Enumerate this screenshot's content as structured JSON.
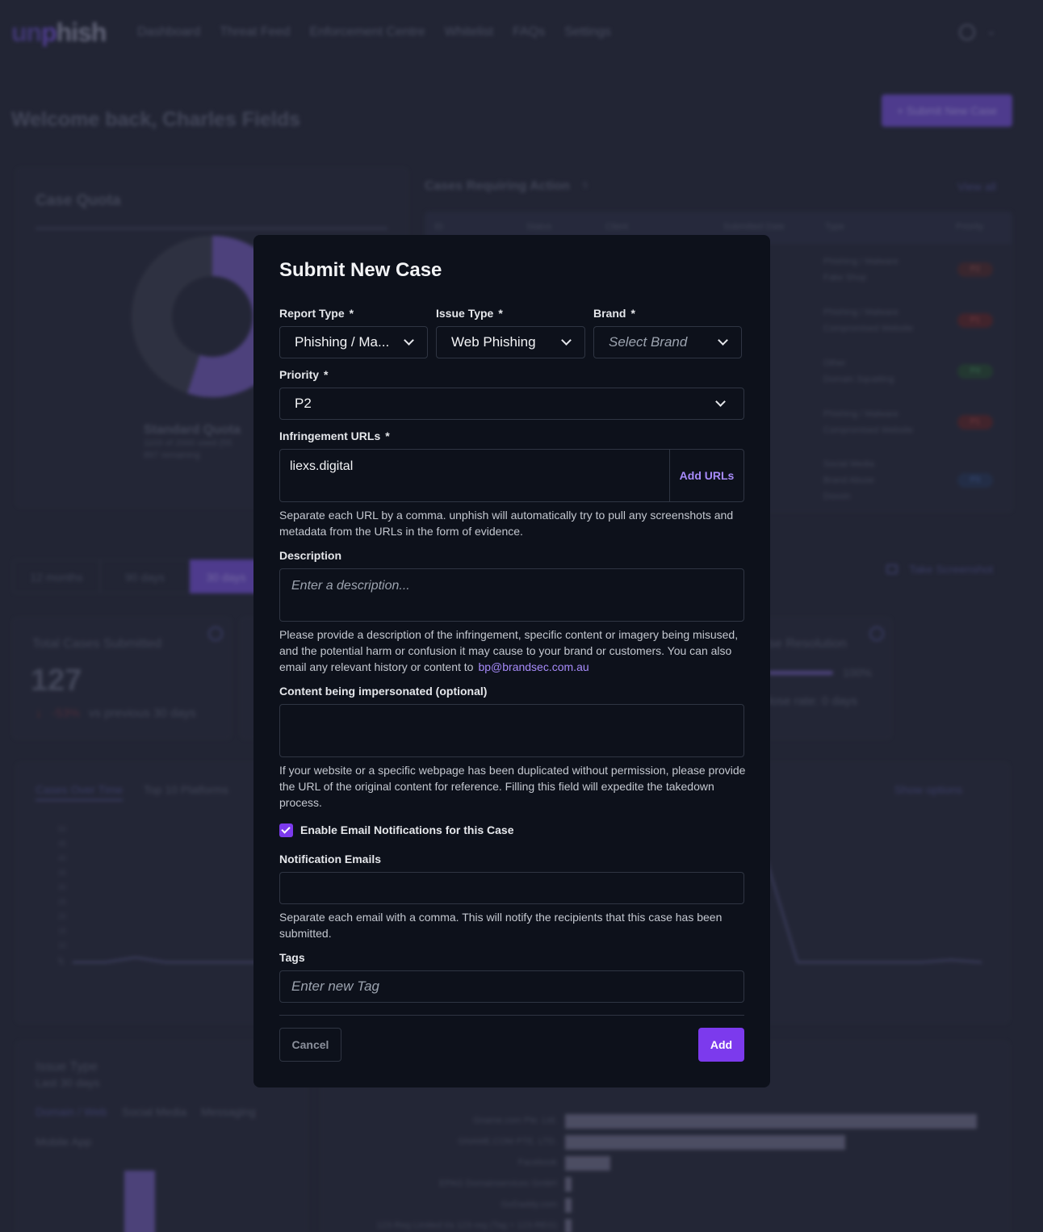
{
  "background": {
    "logo_pre": "un",
    "logo_mid": "p",
    "logo_post": "hish",
    "nav": [
      "Dashboard",
      "Threat Feed",
      "Enforcement Centre",
      "Whitelist",
      "FAQs",
      "Settings"
    ],
    "welcome": "Welcome back, Charles Fields",
    "submit_button": "+ Submit New Case",
    "case_quota_title": "Case Quota",
    "quota_label": "Standard Quota",
    "quota_used": "1103 of 2000 used (55",
    "quota_remaining": "897 remaining",
    "cases_title": "Cases Requiring Action",
    "cases_count": "5",
    "view_all": "View all",
    "table_headers": [
      "ID",
      "Status",
      "Client",
      "Submitted Date",
      "Type",
      "Priority"
    ],
    "rows": [
      {
        "type1": "Phishing / Malware",
        "type2": "Fake Shop",
        "priority": "P2"
      },
      {
        "type1": "Phishing / Malware",
        "type2": "Compromised Website",
        "priority": "P1"
      },
      {
        "type1": "Other",
        "type2": "Domain Squatting",
        "priority": "P4"
      },
      {
        "type1": "Phishing / Malware",
        "type2": "Compromised Website",
        "priority": "P1"
      },
      {
        "type1": "Social Media",
        "type2": "Brand Abuse",
        "type3": "Doxxin",
        "priority": "P3"
      }
    ],
    "range_tabs": [
      "12 months",
      "90 days",
      "30 days"
    ],
    "take_screenshot": "Take Screenshot",
    "total_cases_label": "Total Cases Submitted",
    "total_cases_value": "127",
    "total_cases_change": "-53%",
    "total_cases_vs": "vs previous 30 days",
    "resolution_label": "se Resolution",
    "resolution_pct": "100%",
    "close_rate": "lose rate: 0 days",
    "chart_tabs": [
      "Cases Over Time",
      "Top 10 Platforms"
    ],
    "show_options": "Show options",
    "issue_type_title": "Issue Type",
    "issue_type_sub": "Last 30 days",
    "issue_tabs": [
      "Domain / Web",
      "Social Media",
      "Messaging",
      "Mobile App"
    ],
    "platforms": [
      {
        "name": "Gname.com Pte. Ltd.",
        "value": 100
      },
      {
        "name": "GNAME.COM PTE. LTD.",
        "value": 68
      },
      {
        "name": "Facebook",
        "value": 11
      },
      {
        "name": "EPAG Domainservices GmbH",
        "value": 1.5
      },
      {
        "name": "GoDaddy.com",
        "value": 1.5
      },
      {
        "name": "123-Reg Limited t/a 123-reg (Tag = 123-REG)",
        "value": 1.5
      }
    ]
  },
  "modal": {
    "title": "Submit New Case",
    "report_type_label": "Report Type",
    "report_type_value": "Phishing / Ma...",
    "issue_type_label": "Issue Type",
    "issue_type_value": "Web Phishing",
    "brand_label": "Brand",
    "brand_placeholder": "Select Brand",
    "priority_label": "Priority",
    "priority_value": "P2",
    "urls_label": "Infringement URLs",
    "urls_value": "liexs.digital",
    "add_urls": "Add URLs",
    "urls_help": "Separate each URL by a comma. unphish will automatically try to pull any screenshots and metadata from the URLs in the form of evidence.",
    "description_label": "Description",
    "description_placeholder": "Enter a description...",
    "description_help": "Please provide a description of the infringement, specific content or imagery being misused, and the potential harm or confusion it may cause to your brand or customers. You can also email any relevant history or content to",
    "description_email": "bp@brandsec.com.au",
    "content_label": "Content being impersonated (optional)",
    "content_help": "If your website or a specific webpage has been duplicated without permission, please provide the URL of the original content for reference. Filling this field will expedite the takedown process.",
    "notify_checkbox": "Enable Email Notifications for this Case",
    "emails_label": "Notification Emails",
    "emails_help": "Separate each email with a comma. This will notify the recipients that this case has been submitted.",
    "tags_label": "Tags",
    "tags_placeholder": "Enter new Tag",
    "cancel": "Cancel",
    "add": "Add",
    "required_mark": "*"
  }
}
